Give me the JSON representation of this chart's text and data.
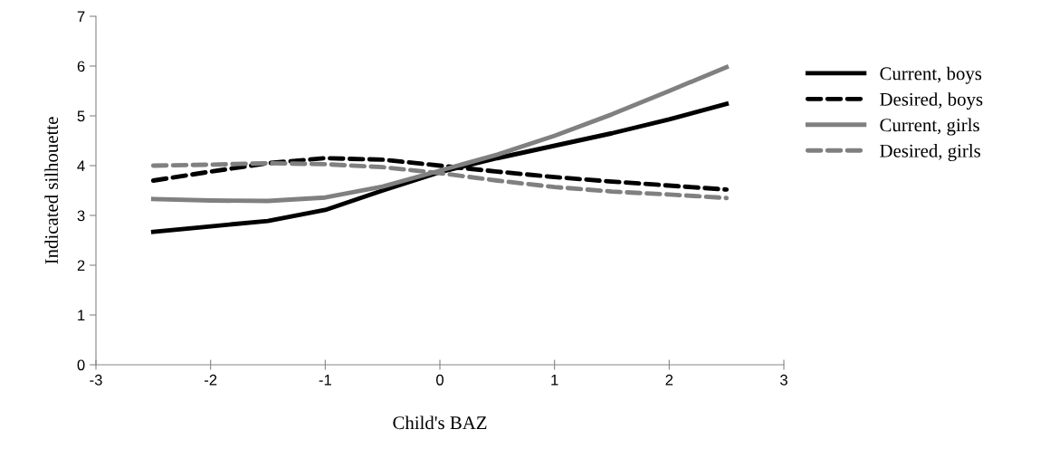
{
  "chart_data": {
    "type": "line",
    "xlabel": "Child's BAZ",
    "ylabel": "Indicated silhouette",
    "x": [
      -2.5,
      -2,
      -1.5,
      -1,
      -0.5,
      0,
      0.5,
      1,
      1.5,
      2,
      2.5
    ],
    "series": [
      {
        "name": "Current, boys",
        "color": "#000000",
        "line_style": "solid",
        "values": [
          2.67,
          2.78,
          2.89,
          3.11,
          3.5,
          3.87,
          4.15,
          4.4,
          4.65,
          4.93,
          5.24
        ]
      },
      {
        "name": "Desired, boys",
        "color": "#000000",
        "line_style": "dashed",
        "values": [
          3.7,
          3.88,
          4.05,
          4.15,
          4.12,
          4.0,
          3.88,
          3.77,
          3.68,
          3.6,
          3.52
        ]
      },
      {
        "name": "Current, girls",
        "color": "#808080",
        "line_style": "solid",
        "values": [
          3.33,
          3.3,
          3.29,
          3.36,
          3.58,
          3.9,
          4.22,
          4.6,
          5.03,
          5.5,
          5.98
        ]
      },
      {
        "name": "Desired, girls",
        "color": "#808080",
        "line_style": "dashed",
        "values": [
          4.0,
          4.02,
          4.05,
          4.03,
          3.97,
          3.85,
          3.7,
          3.57,
          3.48,
          3.42,
          3.35
        ]
      }
    ],
    "xlim": [
      -3,
      3
    ],
    "xticks": [
      -3,
      -2,
      -1,
      0,
      1,
      2,
      3
    ],
    "ylim": [
      0,
      7
    ],
    "yticks": [
      0,
      1,
      2,
      3,
      4,
      5,
      6,
      7
    ],
    "grid": false,
    "legend": "right",
    "marker": "none"
  }
}
